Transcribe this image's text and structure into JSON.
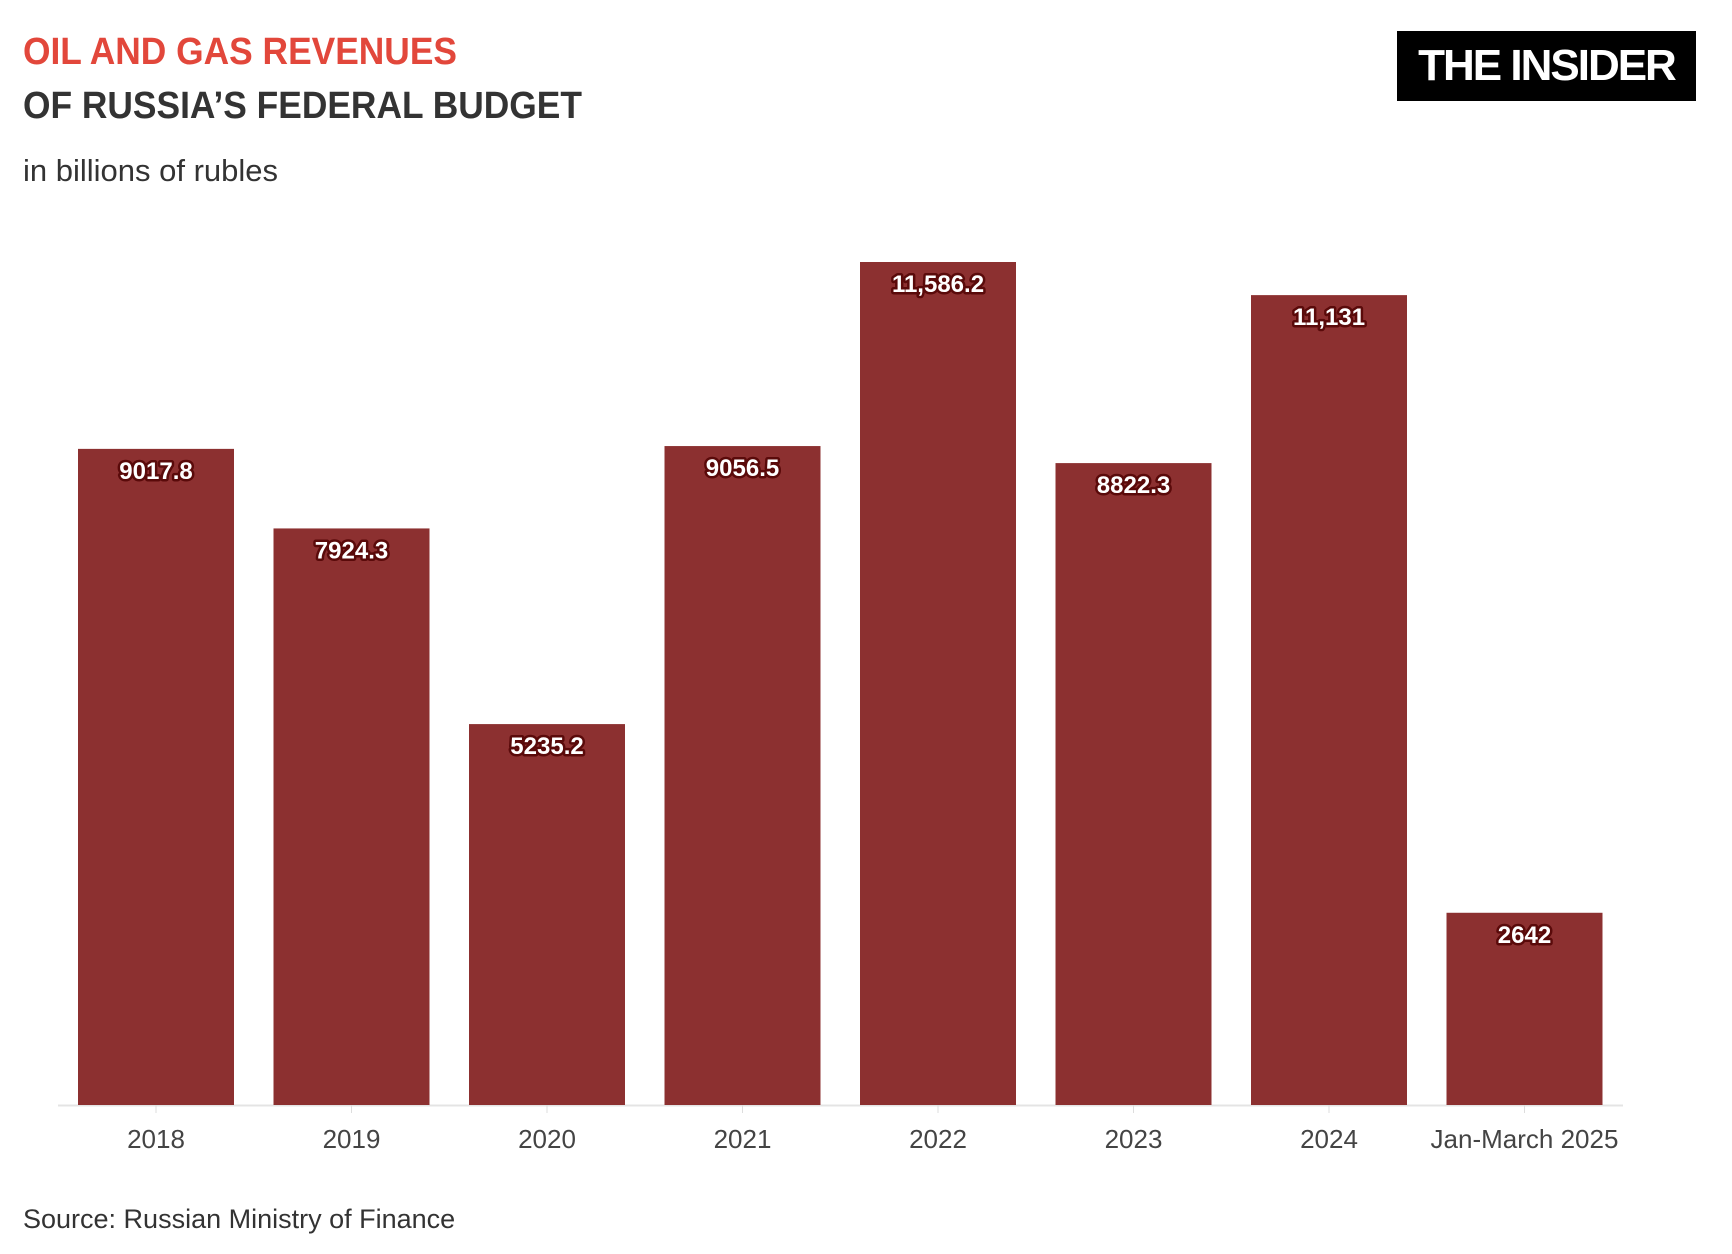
{
  "header": {
    "title_line1": "OIL AND GAS REVENUES",
    "title_line2": "OF RUSSIA’S FEDERAL BUDGET",
    "subtitle": "in billions of rubles",
    "logo": "THE INSIDER"
  },
  "footer": {
    "source": "Source: Russian Ministry of Finance"
  },
  "colors": {
    "bar": "#8c3030",
    "title_accent": "#e2473b",
    "text": "#333333"
  },
  "chart_data": {
    "type": "bar",
    "title": "OIL AND GAS REVENUES OF RUSSIA’S FEDERAL BUDGET",
    "subtitle": "in billions of rubles",
    "categories": [
      "2018",
      "2019",
      "2020",
      "2021",
      "2022",
      "2023",
      "2024",
      "Jan-March 2025"
    ],
    "values": [
      9017.8,
      7924.3,
      5235.2,
      9056.5,
      11586.2,
      8822.3,
      11131,
      2642
    ],
    "data_labels": [
      "9017.8",
      "7924.3",
      "5235.2",
      "9056.5",
      "11,586.2",
      "8822.3",
      "11,131",
      "2642"
    ],
    "xlabel": "",
    "ylabel": "",
    "ylim": [
      0,
      11586.2
    ],
    "grid": false,
    "legend": "none"
  }
}
